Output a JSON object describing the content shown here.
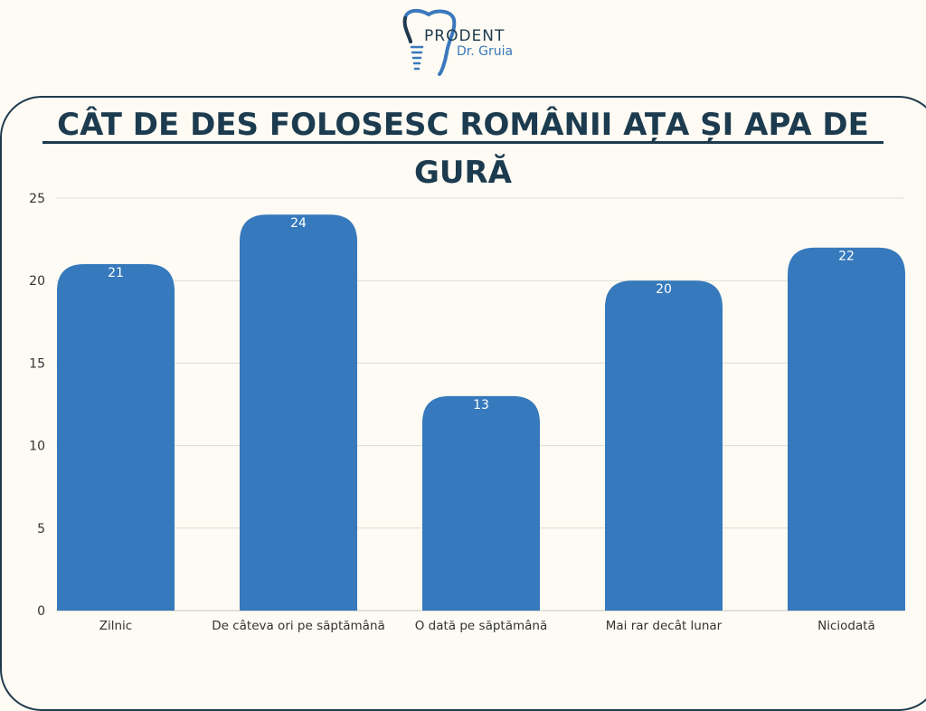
{
  "logo": {
    "name": "PRODENT",
    "subtitle": "Dr. Gruia",
    "icon": "tooth-implant-icon"
  },
  "colors": {
    "background": "#fdfbf3",
    "bar": "#3679bc",
    "title": "#1c3b4f",
    "bar_label": "#ffffff",
    "grid": "#dcdcd6",
    "axis_text": "#333333"
  },
  "chart_data": {
    "type": "bar",
    "title": "CÂT DE DES FOLOSESC ROMÂNII AȚA ȘI APA DE GURĂ",
    "xlabel": "",
    "ylabel": "",
    "categories": [
      "Zilnic",
      "De câteva ori pe săptămână",
      "O dată pe săptămână",
      "Mai rar decât lunar",
      "Niciodată"
    ],
    "values": [
      21,
      24,
      13,
      20,
      22
    ],
    "ylim": [
      0,
      25
    ],
    "yticks": [
      "0",
      "5",
      "10",
      "15",
      "20",
      "25"
    ],
    "grid": true,
    "legend": "none",
    "data_labels": true
  }
}
